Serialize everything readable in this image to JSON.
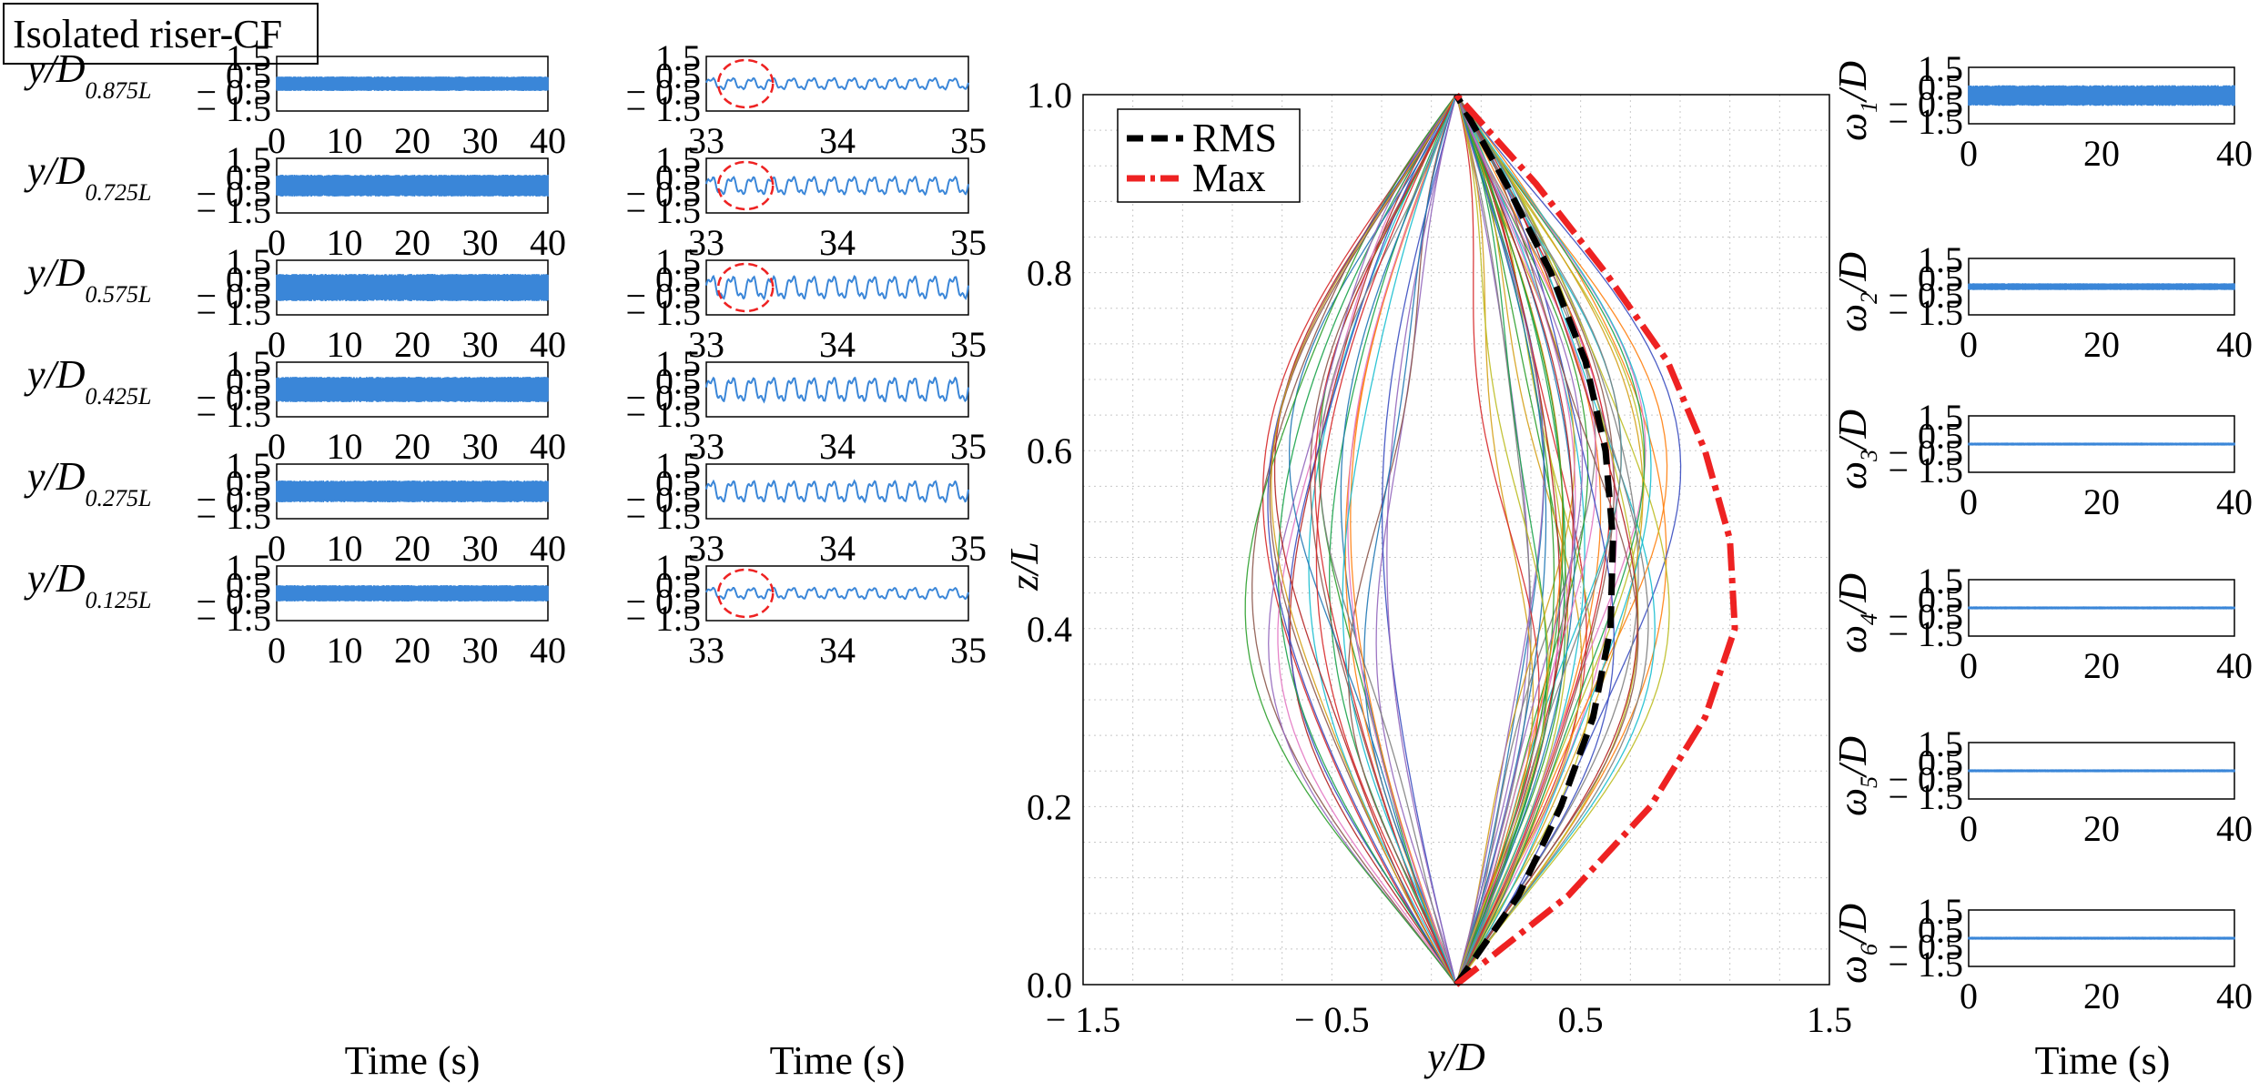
{
  "figure_label": "Isolated riser-CF",
  "colors": {
    "signal": "#3a86d8",
    "rms": "#000000",
    "max": "#ee2222",
    "highlight": "#ee2222",
    "grid": "#c8c8c8"
  },
  "chart_data": [
    {
      "type": "line",
      "panel": "time-series-full",
      "xlabel": "Time (s)",
      "xlim": [
        0,
        40
      ],
      "xticks": [
        "0",
        "10",
        "20",
        "30",
        "40"
      ],
      "ylim": [
        -1.5,
        1.5
      ],
      "yticks": [
        "1.5",
        "0.5",
        "− 0.5",
        "− 1.5"
      ],
      "series": [
        {
          "ylabel": "y/D",
          "location": "0.875L",
          "amplitude": 0.4,
          "frequency_hz": 6.5
        },
        {
          "ylabel": "y/D",
          "location": "0.725L",
          "amplitude": 0.6,
          "frequency_hz": 6.5
        },
        {
          "ylabel": "y/D",
          "location": "0.575L",
          "amplitude": 0.75,
          "frequency_hz": 6.5
        },
        {
          "ylabel": "y/D",
          "location": "0.425L",
          "amplitude": 0.7,
          "frequency_hz": 6.5
        },
        {
          "ylabel": "y/D",
          "location": "0.275L",
          "amplitude": 0.6,
          "frequency_hz": 6.5
        },
        {
          "ylabel": "y/D",
          "location": "0.125L",
          "amplitude": 0.45,
          "frequency_hz": 6.5
        }
      ]
    },
    {
      "type": "line",
      "panel": "time-series-zoom",
      "xlabel": "Time (s)",
      "xlim": [
        33,
        35
      ],
      "xticks": [
        "33",
        "34",
        "35"
      ],
      "ylim": [
        -1.5,
        1.5
      ],
      "yticks": [
        "1.5",
        "0.5",
        "− 0.5",
        "− 1.5"
      ],
      "highlight_ellipse_center": [
        33.3,
        0.2
      ],
      "series": [
        {
          "location": "0.875L",
          "amplitude": 0.35,
          "frequency_hz": 6.5,
          "highlight": true
        },
        {
          "location": "0.725L",
          "amplitude": 0.55,
          "frequency_hz": 6.5,
          "highlight": true
        },
        {
          "location": "0.575L",
          "amplitude": 0.7,
          "frequency_hz": 6.5,
          "highlight": true
        },
        {
          "location": "0.425L",
          "amplitude": 0.75,
          "frequency_hz": 6.5,
          "highlight": false
        },
        {
          "location": "0.275L",
          "amplitude": 0.65,
          "frequency_hz": 6.5,
          "highlight": false
        },
        {
          "location": "0.125L",
          "amplitude": 0.35,
          "frequency_hz": 6.5,
          "highlight": true
        }
      ]
    },
    {
      "type": "line",
      "panel": "displacement-envelope",
      "xlabel": "y/D",
      "ylabel": "z/L",
      "xlim": [
        -1.5,
        1.5
      ],
      "ylim": [
        0,
        1
      ],
      "xticks": [
        "− 1.5",
        "− 0.5",
        "0.5",
        "1.5"
      ],
      "yticks": [
        "0.0",
        "0.2",
        "0.4",
        "0.6",
        "0.8",
        "1.0"
      ],
      "grid": true,
      "legend_position": "top-left",
      "series": [
        {
          "name": "RMS",
          "style": "dashed",
          "z": [
            0,
            0.1,
            0.2,
            0.3,
            0.4,
            0.5,
            0.6,
            0.7,
            0.8,
            0.9,
            1.0
          ],
          "y": [
            0.0,
            0.25,
            0.42,
            0.55,
            0.62,
            0.63,
            0.6,
            0.52,
            0.38,
            0.2,
            0.0
          ]
        },
        {
          "name": "Max",
          "style": "dash-dot",
          "z": [
            0,
            0.1,
            0.2,
            0.3,
            0.4,
            0.5,
            0.6,
            0.7,
            0.8,
            0.9,
            1.0
          ],
          "y": [
            0.0,
            0.45,
            0.78,
            1.0,
            1.12,
            1.1,
            1.0,
            0.85,
            0.6,
            0.32,
            0.0
          ]
        }
      ],
      "snapshot_count": 80
    },
    {
      "type": "line",
      "panel": "modal-weights",
      "xlabel": "Time (s)",
      "xlim": [
        0,
        40
      ],
      "xticks": [
        "0",
        "20",
        "40"
      ],
      "ylim": [
        -1.5,
        1.5
      ],
      "yticks": [
        "1.5",
        "0.5",
        "− 0.5",
        "− 1.5"
      ],
      "series": [
        {
          "ylabel": "ω",
          "index": "1",
          "amplitude": 0.55
        },
        {
          "ylabel": "ω",
          "index": "2",
          "amplitude": 0.18
        },
        {
          "ylabel": "ω",
          "index": "3",
          "amplitude": 0.04
        },
        {
          "ylabel": "ω",
          "index": "4",
          "amplitude": 0.02
        },
        {
          "ylabel": "ω",
          "index": "5",
          "amplitude": 0.06
        },
        {
          "ylabel": "ω",
          "index": "6",
          "amplitude": 0.04
        }
      ]
    }
  ]
}
